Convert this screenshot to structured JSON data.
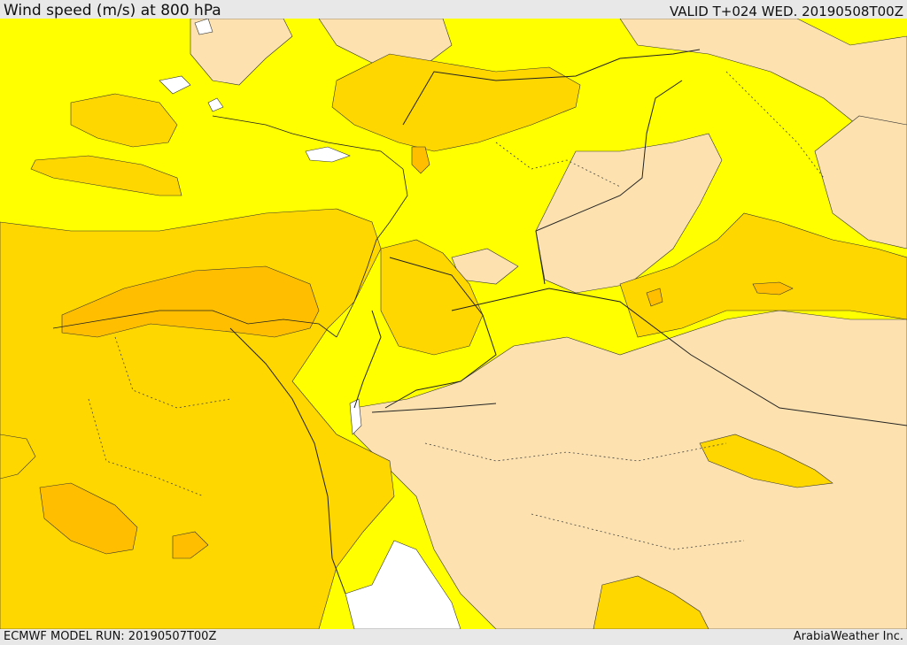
{
  "header": {
    "title": "Wind speed (m/s) at 800 hPa",
    "valid": "VALID T+024 WED. 20190508T00Z"
  },
  "footer": {
    "model_run": "ECMWF MODEL RUN: 20190507T00Z",
    "credit": "ArabiaWeather Inc."
  },
  "map": {
    "colors": {
      "calm": "#fde2b0",
      "light": "#ffff00",
      "moderate": "#ffd700",
      "strong": "#ffbf00",
      "water": "#ffffff",
      "border": "#222222",
      "sea_outline": "#333333"
    }
  }
}
